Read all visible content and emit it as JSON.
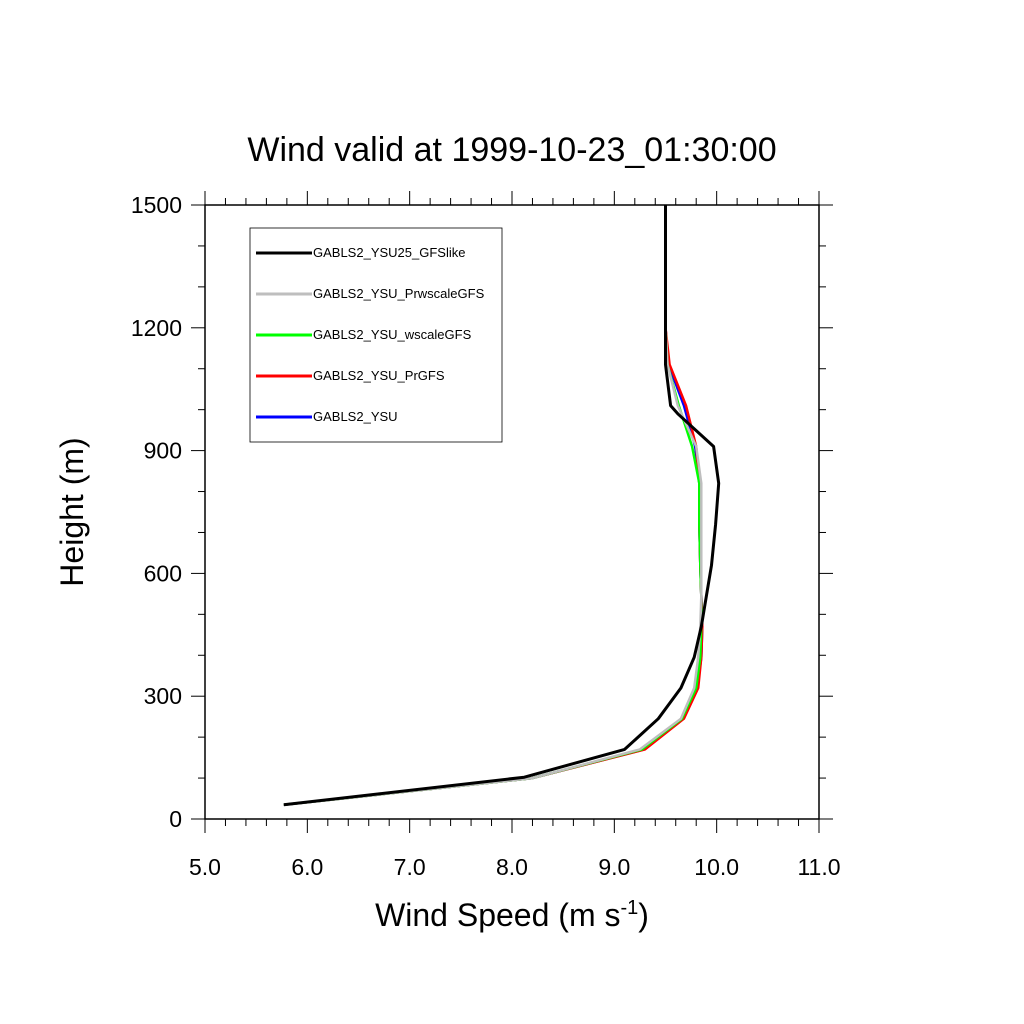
{
  "chart_data": {
    "type": "line",
    "title": "Wind valid at 1999-10-23_01:30:00",
    "xlabel": "Wind Speed (m s",
    "xlabel_sup": "-1",
    "xlabel_end": ")",
    "ylabel": "Height (m)",
    "xlim": [
      5.0,
      11.0
    ],
    "ylim": [
      0,
      1500
    ],
    "xticks": [
      "5.0",
      "6.0",
      "7.0",
      "8.0",
      "9.0",
      "10.0",
      "11.0"
    ],
    "yticks": [
      "0",
      "300",
      "600",
      "900",
      "1200",
      "1500"
    ],
    "grid": false,
    "legend_position": "top-left",
    "series": [
      {
        "name": "GABLS2_YSU25_GFSlike",
        "color": "#000000",
        "points": [
          [
            5.77,
            35
          ],
          [
            8.12,
            102
          ],
          [
            9.1,
            170
          ],
          [
            9.43,
            245
          ],
          [
            9.65,
            320
          ],
          [
            9.78,
            395
          ],
          [
            9.85,
            470
          ],
          [
            9.9,
            545
          ],
          [
            9.95,
            620
          ],
          [
            9.99,
            720
          ],
          [
            10.02,
            820
          ],
          [
            9.97,
            910
          ],
          [
            9.62,
            990
          ],
          [
            9.55,
            1010
          ],
          [
            9.5,
            1110
          ],
          [
            9.5,
            1200
          ],
          [
            9.5,
            1300
          ],
          [
            9.5,
            1400
          ],
          [
            9.5,
            1500
          ]
        ]
      },
      {
        "name": "GABLS2_YSU_PrwscaleGFS",
        "color": "#bebebe",
        "points": [
          [
            5.77,
            35
          ],
          [
            8.2,
            100
          ],
          [
            9.25,
            170
          ],
          [
            9.65,
            245
          ],
          [
            9.78,
            320
          ],
          [
            9.82,
            395
          ],
          [
            9.84,
            470
          ],
          [
            9.85,
            545
          ],
          [
            9.85,
            620
          ],
          [
            9.85,
            720
          ],
          [
            9.85,
            820
          ],
          [
            9.8,
            910
          ],
          [
            9.62,
            1010
          ],
          [
            9.52,
            1110
          ],
          [
            9.5,
            1200
          ],
          [
            9.5,
            1300
          ],
          [
            9.5,
            1400
          ],
          [
            9.5,
            1500
          ]
        ]
      },
      {
        "name": "GABLS2_YSU_wscaleGFS",
        "color": "#00ff00",
        "points": [
          [
            5.77,
            35
          ],
          [
            8.2,
            100
          ],
          [
            9.27,
            170
          ],
          [
            9.66,
            245
          ],
          [
            9.8,
            320
          ],
          [
            9.84,
            395
          ],
          [
            9.85,
            470
          ],
          [
            9.85,
            545
          ],
          [
            9.84,
            620
          ],
          [
            9.83,
            720
          ],
          [
            9.83,
            820
          ],
          [
            9.76,
            910
          ],
          [
            9.63,
            1010
          ],
          [
            9.52,
            1110
          ],
          [
            9.5,
            1200
          ],
          [
            9.5,
            1300
          ],
          [
            9.5,
            1400
          ],
          [
            9.5,
            1500
          ]
        ]
      },
      {
        "name": "GABLS2_YSU_PrGFS",
        "color": "#ff0000",
        "points": [
          [
            5.77,
            35
          ],
          [
            8.2,
            100
          ],
          [
            9.3,
            170
          ],
          [
            9.68,
            245
          ],
          [
            9.82,
            320
          ],
          [
            9.85,
            395
          ],
          [
            9.86,
            470
          ],
          [
            9.85,
            545
          ],
          [
            9.84,
            620
          ],
          [
            9.83,
            720
          ],
          [
            9.83,
            820
          ],
          [
            9.8,
            910
          ],
          [
            9.7,
            1010
          ],
          [
            9.54,
            1110
          ],
          [
            9.5,
            1200
          ],
          [
            9.5,
            1300
          ],
          [
            9.5,
            1400
          ],
          [
            9.5,
            1500
          ]
        ]
      },
      {
        "name": "GABLS2_YSU",
        "color": "#0000ff",
        "points": [
          [
            5.77,
            35
          ],
          [
            8.2,
            100
          ],
          [
            9.29,
            170
          ],
          [
            9.67,
            245
          ],
          [
            9.81,
            320
          ],
          [
            9.85,
            395
          ],
          [
            9.86,
            470
          ],
          [
            9.85,
            545
          ],
          [
            9.84,
            620
          ],
          [
            9.83,
            720
          ],
          [
            9.83,
            820
          ],
          [
            9.79,
            910
          ],
          [
            9.68,
            1010
          ],
          [
            9.53,
            1110
          ],
          [
            9.5,
            1200
          ],
          [
            9.5,
            1300
          ],
          [
            9.5,
            1400
          ],
          [
            9.5,
            1500
          ]
        ]
      }
    ]
  }
}
